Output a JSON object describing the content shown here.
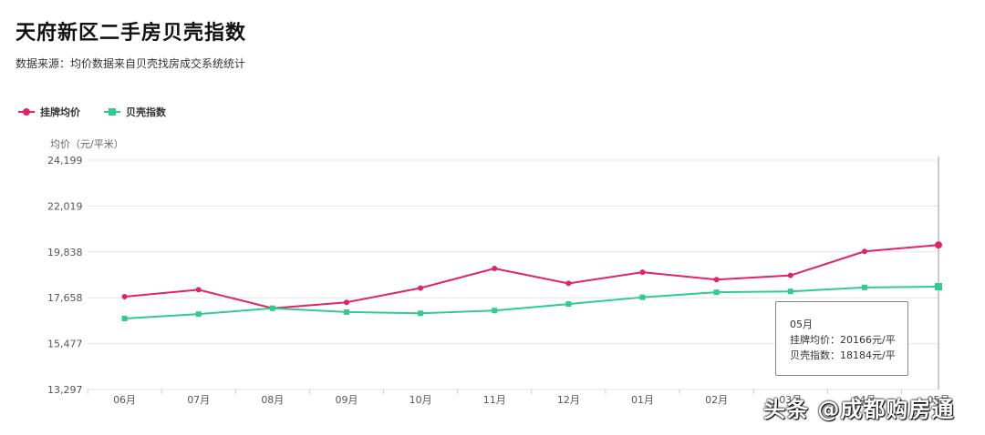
{
  "header": {
    "title": "天府新区二手房贝壳指数",
    "subtitle": "数据来源：均价数据来自贝壳找房成交系统统计"
  },
  "tooltip": {
    "month": "05月",
    "line1": "挂牌均价：20166元/平",
    "line2": "贝壳指数：18184元/平"
  },
  "watermark": "头条 @成都购房通",
  "colors": {
    "listing": "#e0236a",
    "index": "#2ecc8e",
    "grid": "#e6e6e6",
    "cursor": "#999999"
  },
  "chart_data": {
    "type": "line",
    "title": "天府新区二手房贝壳指数",
    "ylabel": "均价（元/平米）",
    "xlabel": "",
    "categories": [
      "06月",
      "07月",
      "08月",
      "09月",
      "10月",
      "11月",
      "12月",
      "01月",
      "02月",
      "03月",
      "04月",
      "05月"
    ],
    "y_ticks": [
      "24,199",
      "22,019",
      "19,838",
      "17,658",
      "15,477",
      "13,297"
    ],
    "ylim": [
      13297,
      24199
    ],
    "legend_position": "top-left",
    "series": [
      {
        "name": "挂牌均价",
        "marker": "circle",
        "values": [
          17709,
          18040,
          17160,
          17440,
          18120,
          19050,
          18340,
          18870,
          18520,
          18720,
          19860,
          20166
        ]
      },
      {
        "name": "贝壳指数",
        "marker": "square",
        "values": [
          16670,
          16880,
          17160,
          16980,
          16920,
          17050,
          17360,
          17680,
          17920,
          17960,
          18150,
          18184
        ]
      }
    ]
  }
}
